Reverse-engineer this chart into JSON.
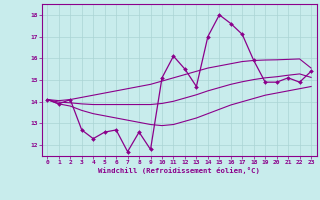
{
  "background_color": "#c8ecec",
  "grid_color": "#aad4d4",
  "line_color": "#8b008b",
  "xlim": [
    -0.5,
    23.5
  ],
  "ylim": [
    11.5,
    18.5
  ],
  "xticks": [
    0,
    1,
    2,
    3,
    4,
    5,
    6,
    7,
    8,
    9,
    10,
    11,
    12,
    13,
    14,
    15,
    16,
    17,
    18,
    19,
    20,
    21,
    22,
    23
  ],
  "yticks": [
    12,
    13,
    14,
    15,
    16,
    17,
    18
  ],
  "xlabel": "Windchill (Refroidissement éolien,°C)",
  "series": {
    "main": [
      14.1,
      13.9,
      14.1,
      12.7,
      12.3,
      12.6,
      12.7,
      11.7,
      12.6,
      11.8,
      15.1,
      16.1,
      15.5,
      14.7,
      17.0,
      18.0,
      17.6,
      17.1,
      15.9,
      14.9,
      14.9,
      15.1,
      14.9,
      15.4
    ],
    "upper": [
      14.1,
      14.05,
      14.1,
      14.2,
      14.3,
      14.4,
      14.5,
      14.6,
      14.7,
      14.8,
      14.95,
      15.1,
      15.25,
      15.4,
      15.55,
      15.65,
      15.75,
      15.85,
      15.9,
      15.92,
      15.93,
      15.95,
      15.97,
      15.55
    ],
    "lower": [
      14.1,
      13.9,
      13.8,
      13.6,
      13.45,
      13.35,
      13.25,
      13.15,
      13.05,
      12.95,
      12.9,
      12.95,
      13.1,
      13.25,
      13.45,
      13.65,
      13.85,
      14.0,
      14.15,
      14.3,
      14.4,
      14.5,
      14.6,
      14.7
    ],
    "mid": [
      14.1,
      13.98,
      13.95,
      13.9,
      13.87,
      13.87,
      13.87,
      13.87,
      13.87,
      13.87,
      13.92,
      14.02,
      14.17,
      14.32,
      14.5,
      14.65,
      14.8,
      14.92,
      15.02,
      15.1,
      15.15,
      15.22,
      15.28,
      15.12
    ]
  }
}
